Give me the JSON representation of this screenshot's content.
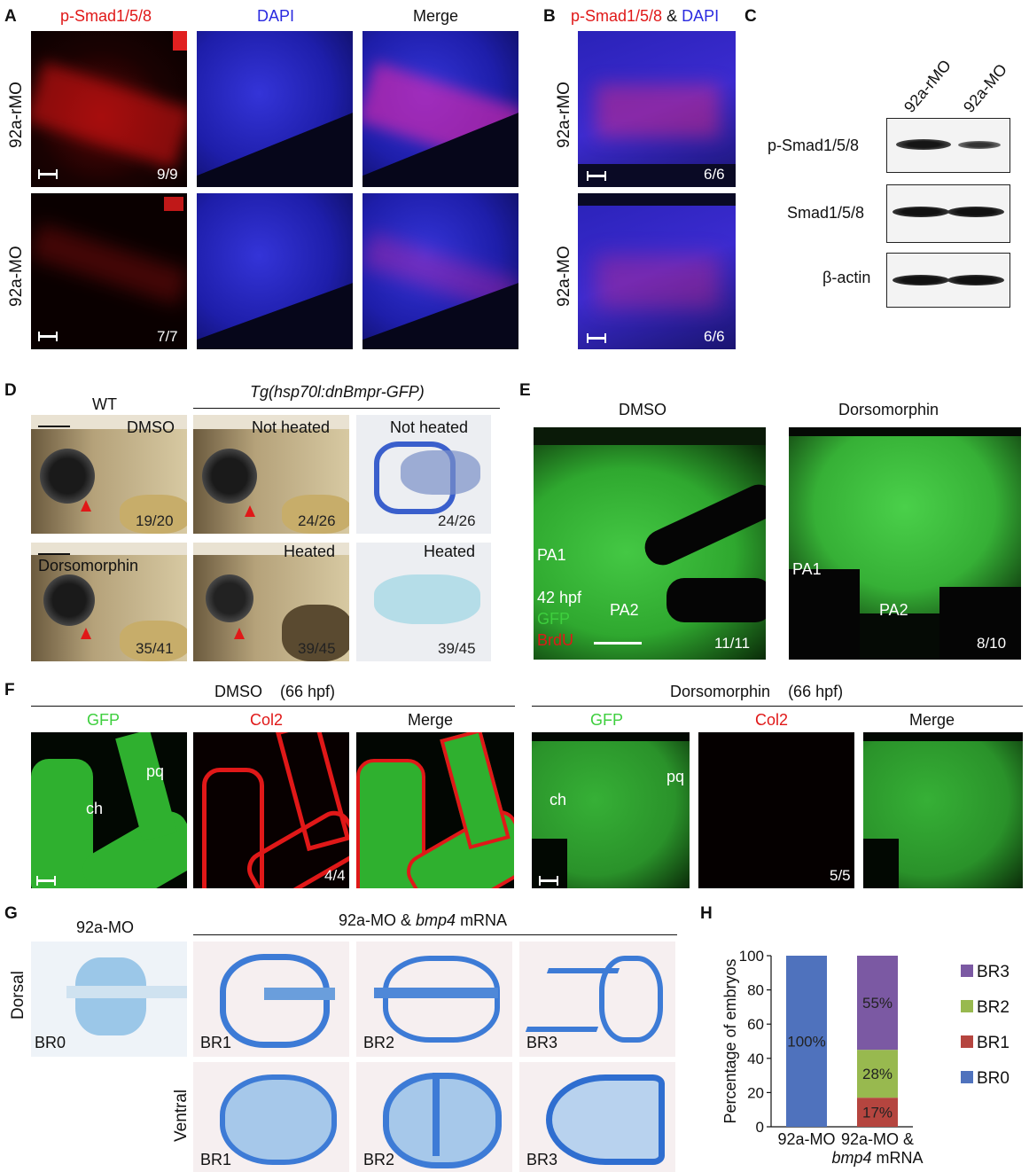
{
  "panels": {
    "A": {
      "letter": "A",
      "columns": [
        "p-Smad1/5/8",
        "DAPI",
        "Merge"
      ],
      "rows": [
        {
          "label": "92a-rMO",
          "count": "9/9"
        },
        {
          "label": "92a-MO",
          "count": "7/7"
        }
      ]
    },
    "B": {
      "letter": "B",
      "title_part1": "p-Smad1/5/8",
      "title_amp": " & ",
      "title_part2": "DAPI",
      "rows": [
        {
          "label": "92a-rMO",
          "count": "6/6"
        },
        {
          "label": "92a-MO",
          "count": "6/6"
        }
      ]
    },
    "C": {
      "letter": "C",
      "lanes": [
        "92a-rMO",
        "92a-MO"
      ],
      "blots": [
        "p-Smad1/5/8",
        "Smad1/5/8",
        "β-actin"
      ]
    },
    "D": {
      "letter": "D",
      "group_wt": "WT",
      "group_tg": "Tg(hsp70l:dnBmpr-GFP)",
      "cells": [
        {
          "label": "DMSO",
          "count": "19/20"
        },
        {
          "label": "Not heated",
          "count": "24/26"
        },
        {
          "label": "Not heated",
          "count": "24/26"
        },
        {
          "label": "Dorsomorphin",
          "count": "35/41"
        },
        {
          "label": "Heated",
          "count": "39/45"
        },
        {
          "label": "Heated",
          "count": "39/45"
        }
      ]
    },
    "E": {
      "letter": "E",
      "conditions": [
        "DMSO",
        "Dorsomorphin"
      ],
      "pa1": "PA1",
      "pa2": "PA2",
      "stage": "42 hpf",
      "gfp": "GFP",
      "brdu": "BrdU",
      "counts": [
        "11/11",
        "8/10"
      ]
    },
    "F": {
      "letter": "F",
      "groups": [
        {
          "title": "DMSO",
          "stage": "(66 hpf)",
          "count": "4/4"
        },
        {
          "title": "Dorsomorphin",
          "stage": "(66 hpf)",
          "count": "5/5"
        }
      ],
      "channels": [
        "GFP",
        "Col2",
        "Merge"
      ],
      "ch": "ch",
      "pq": "pq"
    },
    "G": {
      "letter": "G",
      "left_title": "92a-MO",
      "group_title_a": "92a-MO & ",
      "group_title_gene": "bmp4",
      "group_title_b": " mRNA",
      "dorsal": "Dorsal",
      "ventral": "Ventral",
      "dorsal_labels": [
        "BR0",
        "BR1",
        "BR2",
        "BR3"
      ],
      "ventral_labels": [
        "BR1",
        "BR2",
        "BR3"
      ]
    }
  },
  "chart_data": {
    "panel_letter": "H",
    "type": "bar",
    "stacked": true,
    "ylabel": "Percentage of embryos",
    "ylim": [
      0,
      100
    ],
    "yticks": [
      0,
      20,
      40,
      60,
      80,
      100
    ],
    "categories": [
      "92a-MO",
      "92a-MO & bmp4 mRNA"
    ],
    "category_labels": [
      {
        "line1": "92a-MO",
        "line2_gene": "",
        "line2_rest": ""
      },
      {
        "line1": "92a-MO &",
        "line2_gene": "bmp4",
        "line2_rest": " mRNA"
      }
    ],
    "series": [
      {
        "name": "BR0",
        "color": "#4f72bd",
        "values": [
          100,
          0
        ],
        "labels": [
          "100%",
          ""
        ]
      },
      {
        "name": "BR1",
        "color": "#b5453f",
        "values": [
          0,
          17
        ],
        "labels": [
          "",
          "17%"
        ]
      },
      {
        "name": "BR2",
        "color": "#98b94f",
        "values": [
          0,
          28
        ],
        "labels": [
          "",
          "28%"
        ]
      },
      {
        "name": "BR3",
        "color": "#7b59a3",
        "values": [
          0,
          55
        ],
        "labels": [
          "",
          "55%"
        ]
      }
    ],
    "legend_order": [
      "BR3",
      "BR2",
      "BR1",
      "BR0"
    ],
    "legend_position": "right"
  }
}
